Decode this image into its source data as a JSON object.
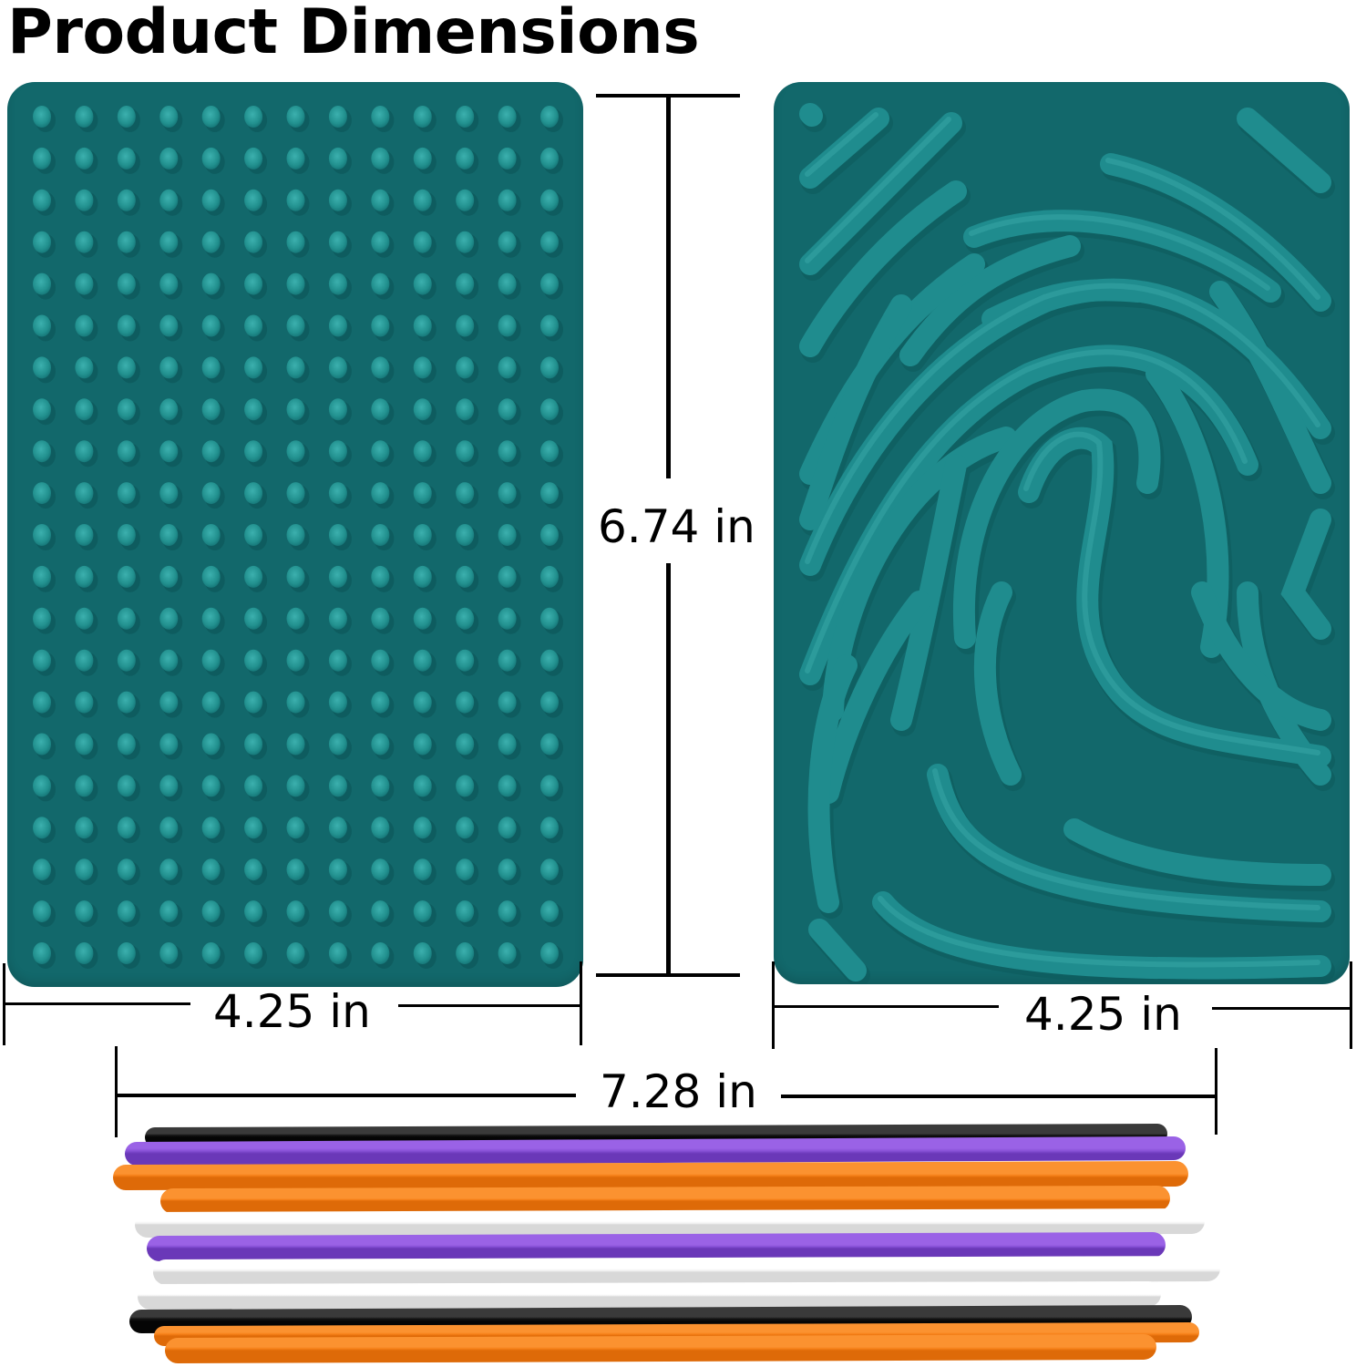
{
  "page": {
    "title": "Product Dimensions"
  },
  "products": {
    "dotted_mat": {
      "name": "dotted sensory mat",
      "color": "#12686b",
      "bump_color": "#2a9a9a",
      "grid_columns": 13,
      "grid_rows": 21
    },
    "fingerprint_mat": {
      "name": "fingerprint maze mat",
      "color": "#12686b",
      "ridge_color": "#1f8c8e"
    },
    "wax_sticks": {
      "name": "wax sticks bundle",
      "colors": [
        "#111111",
        "#8a4fd8",
        "#f57f17",
        "#f57f17",
        "#f2f2f2",
        "#8a4fd8",
        "#f2f2f2",
        "#f2f2f2",
        "#111111",
        "#f57f17"
      ]
    }
  },
  "dimensions": {
    "height": "6.74 in",
    "left_width": "4.25 in",
    "right_width": "4.25 in",
    "stick_length": "7.28 in"
  }
}
